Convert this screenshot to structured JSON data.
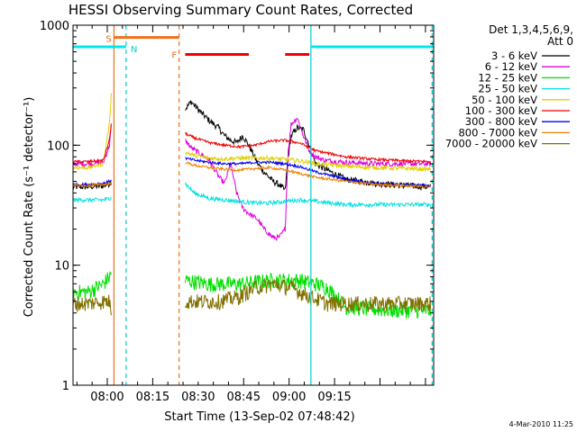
{
  "chart_data": {
    "type": "line",
    "title": "HESSI Observing Summary Count Rates, Corrected",
    "xlabel": "Start Time (13-Sep-02 07:48:42)",
    "ylabel": "Corrected Count Rate (s⁻¹ detector⁻¹)",
    "yscale": "log",
    "ylim": [
      1,
      1000
    ],
    "xlim_minutes": [
      0,
      119
    ],
    "x_ticks": [
      {
        "label": "08:00",
        "minutes": 11.3
      },
      {
        "label": "08:15",
        "minutes": 26.3
      },
      {
        "label": "08:30",
        "minutes": 41.3
      },
      {
        "label": "08:45",
        "minutes": 56.3
      },
      {
        "label": "09:00",
        "minutes": 71.3
      },
      {
        "label": "09:15",
        "minutes": 86.3
      }
    ],
    "y_ticks": [
      {
        "label": "1",
        "value": 1
      },
      {
        "label": "10",
        "value": 10
      },
      {
        "label": "100",
        "value": 100
      },
      {
        "label": "1000",
        "value": 1000
      }
    ],
    "legend": {
      "header": [
        "Det 1,3,4,5,6,9,",
        "Att 0"
      ],
      "placement": "right"
    },
    "annotations": {
      "corner_text": "4-Mar-2010 11:25",
      "markers": [
        {
          "label": "S",
          "color": "#e07020"
        },
        {
          "label": "N",
          "color": "#00d0d0"
        },
        {
          "label": "F",
          "color": "#e07020"
        }
      ]
    },
    "intervals": {
      "saa": {
        "label": "S",
        "color": "#f07018",
        "start": 13.5,
        "end": 35.0,
        "level": 790
      },
      "night": [
        {
          "color": "#00e8e8",
          "start": 0,
          "end": 17.5,
          "level": 660
        },
        {
          "color": "#00e8e8",
          "start": 78.5,
          "end": 119,
          "level": 660
        }
      ],
      "flare": [
        {
          "label": "F",
          "color": "#ee0000",
          "start": 37.0,
          "end": 58.0,
          "level": 570
        },
        {
          "color": "#ee0000",
          "start": 70.0,
          "end": 78.0,
          "level": 570
        }
      ],
      "vlines": [
        {
          "minutes": 13.5,
          "color": "#f07018",
          "style": "solid"
        },
        {
          "minutes": 17.5,
          "color": "#00d0d0",
          "style": "dashed"
        },
        {
          "minutes": 35.0,
          "color": "#f07018",
          "style": "dashed"
        },
        {
          "minutes": 78.5,
          "color": "#00d0d0",
          "style": "solid"
        },
        {
          "minutes": 118.5,
          "color": "#00d0d0",
          "style": "dashed"
        }
      ]
    },
    "series": [
      {
        "name": "3 - 6 keV",
        "color": "#000000",
        "noise": 0.06,
        "segments": [
          {
            "x": [
              0,
              5,
              10,
              12,
              12.7
            ],
            "y": [
              45,
              45,
              46,
              48,
              50
            ]
          },
          {
            "x": [
              37,
              39,
              42,
              45,
              48,
              50,
              52,
              54,
              56,
              58,
              61,
              63,
              66,
              68,
              70,
              71,
              72,
              74,
              76,
              78,
              80,
              85,
              90,
              100,
              110,
              118
            ],
            "y": [
              200,
              230,
              190,
              160,
              140,
              120,
              110,
              105,
              120,
              100,
              70,
              60,
              50,
              47,
              42,
              80,
              120,
              140,
              135,
              100,
              70,
              60,
              52,
              48,
              46,
              45
            ]
          }
        ]
      },
      {
        "name": "6 - 12 keV",
        "color": "#e000e0",
        "noise": 0.05,
        "segments": [
          {
            "x": [
              0,
              5,
              10,
              12,
              12.7
            ],
            "y": [
              70,
              70,
              72,
              100,
              150
            ]
          },
          {
            "x": [
              37,
              39,
              42,
              45,
              48,
              50,
              52,
              54,
              56,
              58,
              61,
              63,
              66,
              68,
              70,
              71,
              72,
              74,
              76,
              78,
              80,
              83,
              90,
              100,
              110,
              118
            ],
            "y": [
              110,
              95,
              85,
              75,
              55,
              48,
              70,
              40,
              30,
              27,
              24,
              20,
              17,
              17,
              20,
              90,
              150,
              170,
              120,
              90,
              80,
              75,
              72,
              70,
              70,
              70
            ]
          }
        ]
      },
      {
        "name": "12 - 25 keV",
        "color": "#00e000",
        "noise": 0.15,
        "segments": [
          {
            "x": [
              0,
              5,
              10,
              12,
              12.7
            ],
            "y": [
              6,
              6,
              7,
              8,
              8.5
            ]
          },
          {
            "x": [
              37,
              45,
              55,
              65,
              75,
              80,
              84,
              90,
              100,
              110,
              118
            ],
            "y": [
              7.5,
              7,
              7,
              7.5,
              7.5,
              7,
              6.5,
              4.5,
              4.3,
              4.2,
              4.2
            ]
          }
        ]
      },
      {
        "name": "25 - 50 keV",
        "color": "#00e0e0",
        "noise": 0.04,
        "segments": [
          {
            "x": [
              0,
              5,
              10,
              12,
              12.7
            ],
            "y": [
              35,
              35,
              35,
              36,
              38
            ]
          },
          {
            "x": [
              37,
              40,
              45,
              50,
              55,
              60,
              65,
              70,
              75,
              80,
              90,
              100,
              110,
              118
            ],
            "y": [
              48,
              40,
              36,
              35,
              34,
              33,
              33,
              34,
              35,
              34,
              32,
              32,
              32,
              32
            ]
          }
        ]
      },
      {
        "name": "50 - 100 keV",
        "color": "#e0d000",
        "noise": 0.04,
        "segments": [
          {
            "x": [
              0,
              5,
              10,
              12,
              12.7
            ],
            "y": [
              65,
              65,
              70,
              150,
              290
            ]
          },
          {
            "x": [
              37,
              40,
              45,
              50,
              55,
              60,
              65,
              70,
              75,
              80,
              90,
              100,
              110,
              118
            ],
            "y": [
              88,
              82,
              78,
              77,
              78,
              78,
              78,
              76,
              74,
              70,
              67,
              65,
              64,
              63
            ]
          }
        ]
      },
      {
        "name": "100 - 300 keV",
        "color": "#ee0000",
        "noise": 0.025,
        "segments": [
          {
            "x": [
              0,
              5,
              10,
              12,
              12.7
            ],
            "y": [
              73,
              73,
              75,
              110,
              160
            ]
          },
          {
            "x": [
              37,
              40,
              45,
              50,
              55,
              60,
              65,
              70,
              75,
              80,
              90,
              100,
              110,
              118
            ],
            "y": [
              125,
              115,
              105,
              100,
              97,
              100,
              108,
              110,
              104,
              90,
              80,
              76,
              74,
              73
            ]
          }
        ]
      },
      {
        "name": "300 - 800 keV",
        "color": "#0000ee",
        "noise": 0.025,
        "segments": [
          {
            "x": [
              0,
              5,
              10,
              12,
              12.7
            ],
            "y": [
              47,
              47,
              48,
              50,
              52
            ]
          },
          {
            "x": [
              37,
              40,
              45,
              50,
              55,
              60,
              65,
              70,
              75,
              80,
              90,
              100,
              110,
              118
            ],
            "y": [
              78,
              75,
              72,
              70,
              70,
              72,
              72,
              70,
              66,
              60,
              52,
              48,
              47,
              46
            ]
          }
        ]
      },
      {
        "name": "800 - 7000 keV",
        "color": "#f08000",
        "noise": 0.025,
        "segments": [
          {
            "x": [
              0,
              5,
              10,
              12,
              12.7
            ],
            "y": [
              46,
              46,
              47,
              48,
              48
            ]
          },
          {
            "x": [
              37,
              40,
              45,
              50,
              55,
              60,
              65,
              70,
              75,
              80,
              90,
              100,
              110,
              118
            ],
            "y": [
              72,
              68,
              65,
              63,
              62,
              64,
              65,
              62,
              58,
              54,
              50,
              47,
              46,
              45
            ]
          }
        ]
      },
      {
        "name": "7000 - 20000 keV",
        "color": "#807000",
        "noise": 0.15,
        "segments": [
          {
            "x": [
              0,
              5,
              10,
              12,
              12.7
            ],
            "y": [
              4.8,
              4.8,
              5,
              5,
              4
            ]
          },
          {
            "x": [
              37,
              42,
              48,
              55,
              60,
              66,
              72,
              78,
              84,
              90,
              100,
              110,
              118
            ],
            "y": [
              5,
              5,
              5,
              5.5,
              6.5,
              7,
              6.5,
              5.5,
              4.8,
              4.8,
              4.8,
              4.8,
              4.8
            ]
          }
        ]
      }
    ]
  }
}
